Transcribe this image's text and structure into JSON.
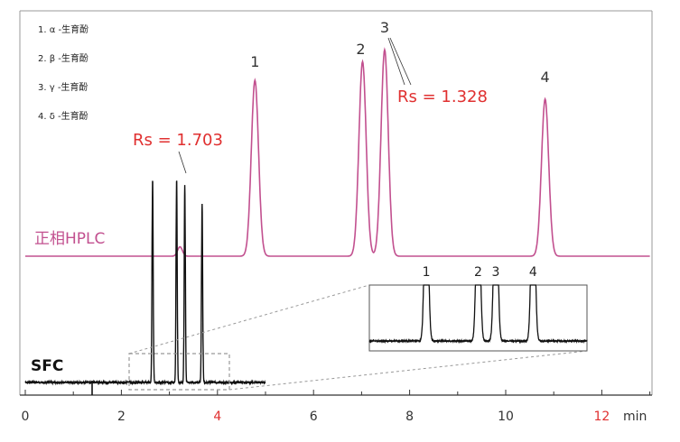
{
  "chart_data": {
    "type": "line",
    "xlabel": "min",
    "xlim": [
      0,
      13
    ],
    "x_ticks": [
      0,
      2,
      4,
      6,
      8,
      10,
      12
    ],
    "x_tick_labels": [
      {
        "value": 0,
        "label": "0",
        "color": "#333333"
      },
      {
        "value": 2,
        "label": "2",
        "color": "#333333"
      },
      {
        "value": 4,
        "label": "4",
        "color": "#e03030"
      },
      {
        "value": 6,
        "label": "6",
        "color": "#333333"
      },
      {
        "value": 8,
        "label": "8",
        "color": "#333333"
      },
      {
        "value": 10,
        "label": "10",
        "color": "#333333"
      },
      {
        "value": 12,
        "label": "12",
        "color": "#e03030"
      }
    ],
    "legend": [
      {
        "number": "1.",
        "greek": "α",
        "label": "-生育酚"
      },
      {
        "number": "2.",
        "greek": "β",
        "label": "-生育酚"
      },
      {
        "number": "3.",
        "greek": "γ",
        "label": "-生育酚"
      },
      {
        "number": "4.",
        "greek": "δ",
        "label": "-生育酚"
      }
    ],
    "series": [
      {
        "name": "正相HPLC",
        "color": "#c2508f",
        "peaks": [
          {
            "label": "1",
            "rt": 4.78,
            "height": 0.75
          },
          {
            "label": "2",
            "rt": 7.02,
            "height": 0.83
          },
          {
            "label": "3",
            "rt": 7.48,
            "height": 0.88
          },
          {
            "label": "4",
            "rt": 10.82,
            "height": 0.67
          }
        ],
        "annotation": {
          "text": "Rs = 1.328",
          "peak": "3",
          "color": "#e03030"
        }
      },
      {
        "name": "SFC",
        "color": "#111111",
        "peaks": [
          {
            "label": "1",
            "rt": 2.65,
            "height": 1.0
          },
          {
            "label": "2",
            "rt": 3.15,
            "height": 1.0
          },
          {
            "label": "3",
            "rt": 3.32,
            "height": 0.97
          },
          {
            "label": "4",
            "rt": 3.68,
            "height": 0.88
          }
        ],
        "annotation": {
          "text": "Rs = 1.703",
          "peak": "3",
          "color": "#e03030"
        }
      }
    ],
    "inset": {
      "peak_labels": [
        "1",
        "2",
        "3",
        "4"
      ],
      "source_range": [
        2.1,
        4.2
      ]
    }
  }
}
